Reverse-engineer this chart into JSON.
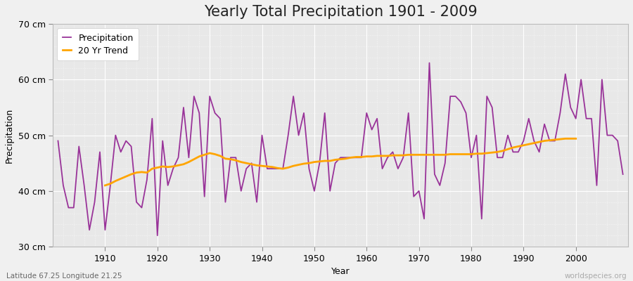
{
  "title": "Yearly Total Precipitation 1901 - 2009",
  "xlabel": "Year",
  "ylabel": "Precipitation",
  "fig_bg_color": "#f0f0f0",
  "plot_bg_color": "#e8e8e8",
  "precip_color": "#993399",
  "trend_color": "#FFA500",
  "precip_label": "Precipitation",
  "trend_label": "20 Yr Trend",
  "ylim": [
    30,
    70
  ],
  "yticks": [
    30,
    40,
    50,
    60,
    70
  ],
  "ytick_labels": [
    "30 cm",
    "40 cm",
    "50 cm",
    "60 cm",
    "70 cm"
  ],
  "years": [
    1901,
    1902,
    1903,
    1904,
    1905,
    1906,
    1907,
    1908,
    1909,
    1910,
    1911,
    1912,
    1913,
    1914,
    1915,
    1916,
    1917,
    1918,
    1919,
    1920,
    1921,
    1922,
    1923,
    1924,
    1925,
    1926,
    1927,
    1928,
    1929,
    1930,
    1931,
    1932,
    1933,
    1934,
    1935,
    1936,
    1937,
    1938,
    1939,
    1940,
    1941,
    1942,
    1943,
    1944,
    1945,
    1946,
    1947,
    1948,
    1949,
    1950,
    1951,
    1952,
    1953,
    1954,
    1955,
    1956,
    1957,
    1958,
    1959,
    1960,
    1961,
    1962,
    1963,
    1964,
    1965,
    1966,
    1967,
    1968,
    1969,
    1970,
    1971,
    1972,
    1973,
    1974,
    1975,
    1976,
    1977,
    1978,
    1979,
    1980,
    1981,
    1982,
    1983,
    1984,
    1985,
    1986,
    1987,
    1988,
    1989,
    1990,
    1991,
    1992,
    1993,
    1994,
    1995,
    1996,
    1997,
    1998,
    1999,
    2000,
    2001,
    2002,
    2003,
    2004,
    2005,
    2006,
    2007,
    2008,
    2009
  ],
  "precip": [
    49,
    41,
    37,
    37,
    48,
    41,
    33,
    38,
    47,
    33,
    41,
    50,
    47,
    49,
    48,
    38,
    37,
    42,
    53,
    32,
    49,
    41,
    44,
    46,
    55,
    46,
    57,
    54,
    39,
    57,
    54,
    53,
    38,
    46,
    46,
    40,
    44,
    45,
    38,
    50,
    44,
    44,
    44,
    44,
    50,
    57,
    50,
    54,
    44,
    40,
    45,
    54,
    40,
    45,
    46,
    46,
    46,
    46,
    46,
    54,
    51,
    53,
    44,
    46,
    47,
    44,
    46,
    54,
    39,
    40,
    35,
    63,
    43,
    41,
    45,
    57,
    57,
    56,
    54,
    46,
    50,
    35,
    57,
    55,
    46,
    46,
    50,
    47,
    47,
    49,
    53,
    49,
    47,
    52,
    49,
    49,
    54,
    61,
    55,
    53,
    60,
    53,
    53,
    41,
    60,
    50,
    50,
    49,
    43
  ],
  "trend": [
    null,
    null,
    null,
    null,
    null,
    null,
    null,
    null,
    null,
    41.0,
    41.3,
    41.8,
    42.2,
    42.6,
    43.0,
    43.3,
    43.4,
    43.3,
    44.0,
    44.2,
    44.4,
    44.3,
    44.4,
    44.6,
    44.8,
    45.2,
    45.7,
    46.2,
    46.5,
    46.8,
    46.6,
    46.3,
    45.8,
    45.7,
    45.5,
    45.2,
    45.0,
    44.8,
    44.6,
    44.5,
    44.4,
    44.3,
    44.1,
    44.0,
    44.2,
    44.5,
    44.7,
    44.9,
    45.0,
    45.2,
    45.3,
    45.4,
    45.4,
    45.6,
    45.7,
    45.8,
    46.0,
    46.1,
    46.1,
    46.2,
    46.2,
    46.3,
    46.3,
    46.3,
    46.4,
    46.4,
    46.4,
    46.5,
    46.5,
    46.5,
    46.5,
    46.5,
    46.5,
    46.5,
    46.5,
    46.6,
    46.6,
    46.6,
    46.6,
    46.6,
    46.7,
    46.7,
    46.8,
    46.9,
    47.0,
    47.2,
    47.5,
    47.8,
    48.0,
    48.2,
    48.4,
    48.6,
    48.8,
    49.0,
    49.1,
    49.2,
    49.3,
    49.4,
    49.4,
    49.4,
    null,
    null,
    null,
    null,
    null,
    null,
    null,
    null,
    null
  ],
  "subtitle": "Latitude 67.25 Longitude 21.25",
  "watermark": "worldspecies.org",
  "title_fontsize": 15,
  "label_fontsize": 9,
  "tick_fontsize": 9,
  "precip_linewidth": 1.3,
  "trend_linewidth": 2.0,
  "xlim": [
    1900,
    2010
  ]
}
